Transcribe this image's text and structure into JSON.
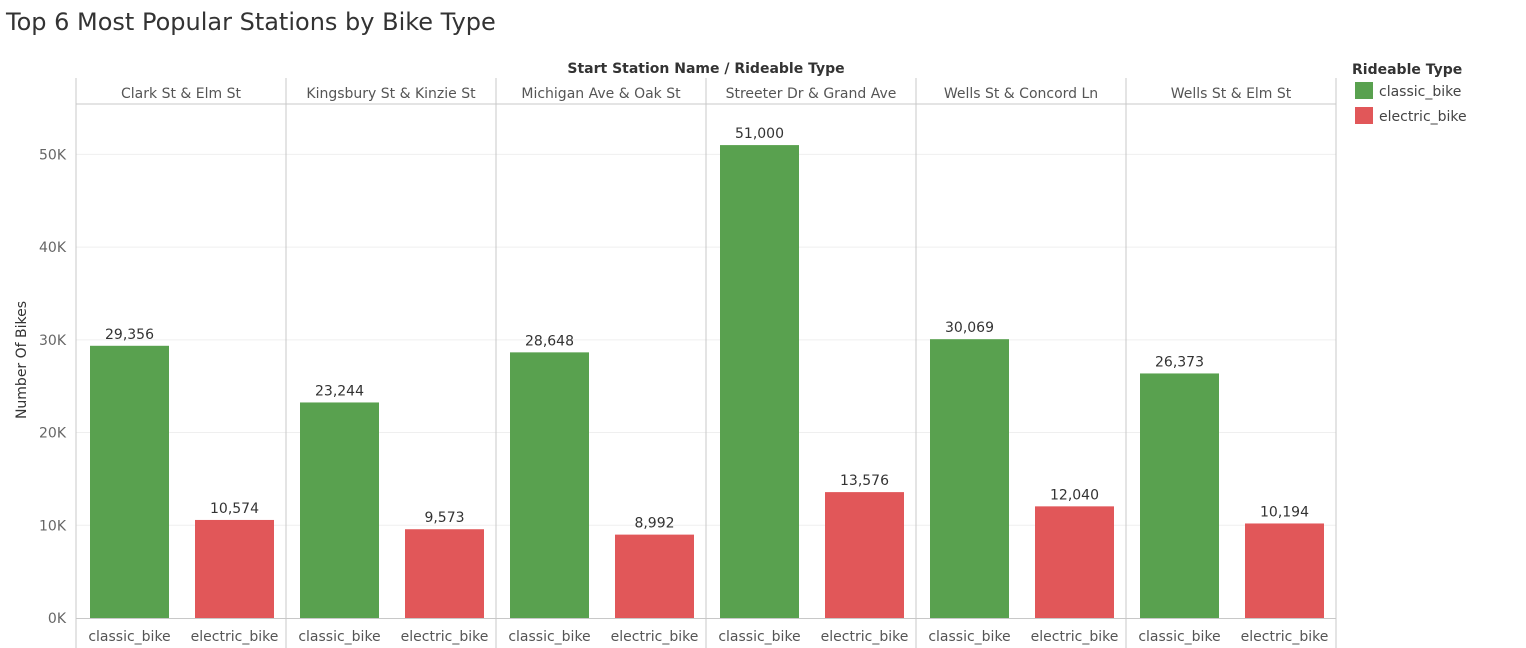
{
  "chart_data": {
    "type": "bar",
    "title": "Top 6 Most Popular Stations by Bike Type",
    "column_header": "Start Station Name  /  Rideable Type",
    "ylabel": "Number Of Bikes",
    "ylim": [
      0,
      55000
    ],
    "yticks": [
      0,
      10000,
      20000,
      30000,
      40000,
      50000
    ],
    "ytick_labels": [
      "0K",
      "10K",
      "20K",
      "30K",
      "40K",
      "50K"
    ],
    "grid": true,
    "legend_position": "right",
    "legend_title": "Rideable Type",
    "categories": [
      "Clark St & Elm St",
      "Kingsbury St & Kinzie St",
      "Michigan Ave & Oak St",
      "Streeter Dr & Grand Ave",
      "Wells St & Concord Ln",
      "Wells St & Elm St"
    ],
    "series": [
      {
        "name": "classic_bike",
        "color": "#59a14f",
        "values": [
          29356,
          23244,
          28648,
          51000,
          30069,
          26373
        ],
        "labels": [
          "29,356",
          "23,244",
          "28,648",
          "51,000",
          "30,069",
          "26,373"
        ]
      },
      {
        "name": "electric_bike",
        "color": "#e15759",
        "values": [
          10574,
          9573,
          8992,
          13576,
          12040,
          10194
        ],
        "labels": [
          "10,574",
          "9,573",
          "8,992",
          "13,576",
          "12,040",
          "10,194"
        ]
      }
    ]
  }
}
